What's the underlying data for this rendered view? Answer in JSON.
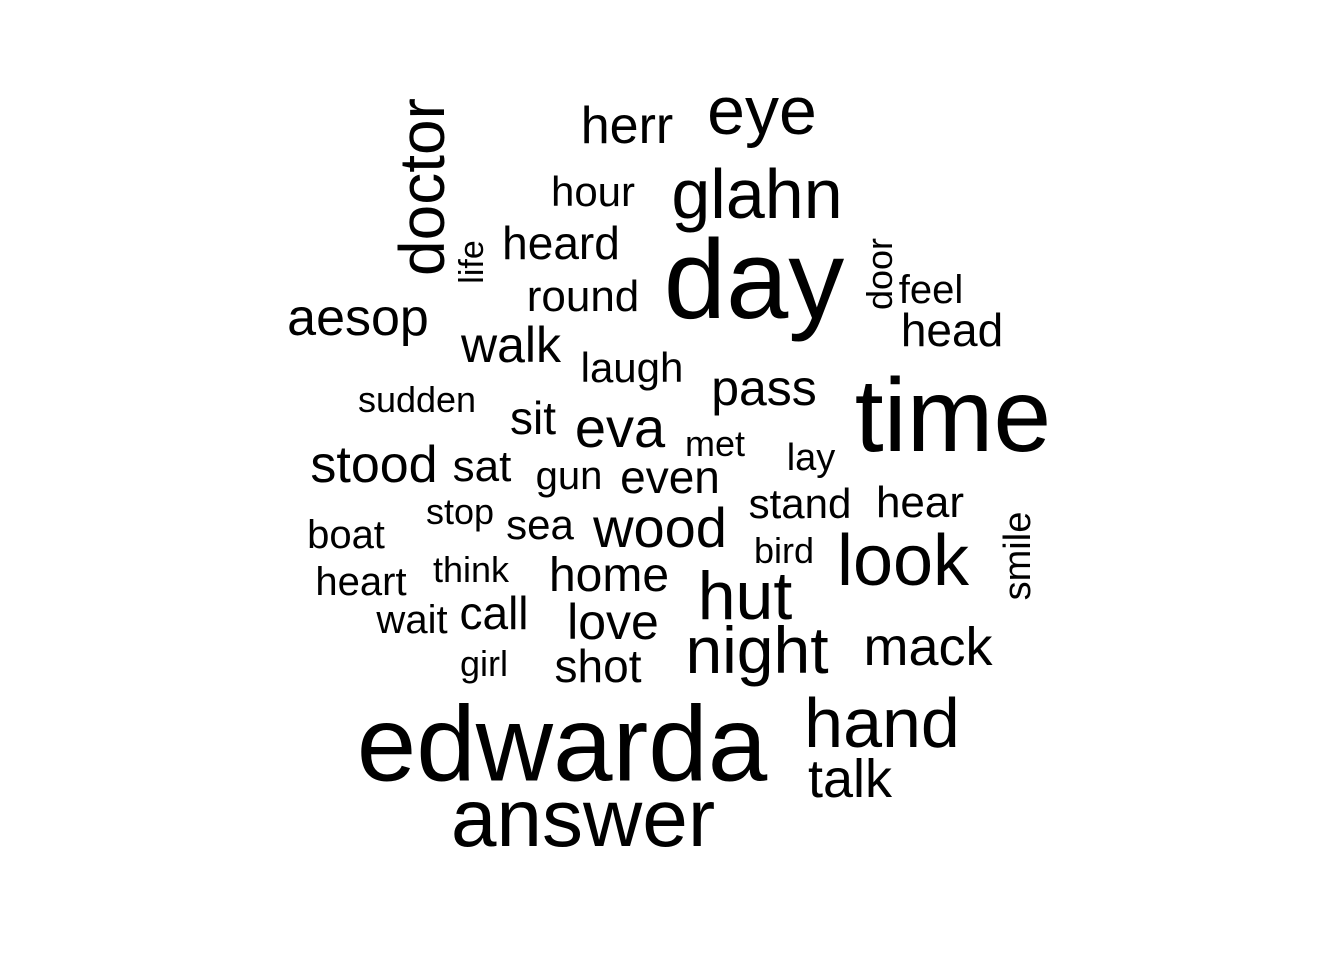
{
  "text_color": "#000000",
  "background": "#ffffff",
  "words": [
    {
      "text": "edwarda"
    },
    {
      "text": "day"
    },
    {
      "text": "time"
    },
    {
      "text": "answer"
    },
    {
      "text": "glahn"
    },
    {
      "text": "eye"
    },
    {
      "text": "doctor"
    },
    {
      "text": "look"
    },
    {
      "text": "night"
    },
    {
      "text": "hand"
    },
    {
      "text": "hut"
    },
    {
      "text": "herr"
    },
    {
      "text": "aesop"
    },
    {
      "text": "walk"
    },
    {
      "text": "eva"
    },
    {
      "text": "wood"
    },
    {
      "text": "talk"
    },
    {
      "text": "mack"
    },
    {
      "text": "stood"
    },
    {
      "text": "pass"
    },
    {
      "text": "heard"
    },
    {
      "text": "head"
    },
    {
      "text": "round"
    },
    {
      "text": "hour"
    },
    {
      "text": "home"
    },
    {
      "text": "love"
    },
    {
      "text": "shot"
    },
    {
      "text": "even"
    },
    {
      "text": "laugh"
    },
    {
      "text": "hear"
    },
    {
      "text": "stand"
    },
    {
      "text": "call"
    },
    {
      "text": "sit"
    },
    {
      "text": "sat"
    },
    {
      "text": "sea"
    },
    {
      "text": "feel"
    },
    {
      "text": "boat"
    },
    {
      "text": "heart"
    },
    {
      "text": "gun"
    },
    {
      "text": "door"
    },
    {
      "text": "smile"
    },
    {
      "text": "sudden"
    },
    {
      "text": "met"
    },
    {
      "text": "wait"
    },
    {
      "text": "lay"
    },
    {
      "text": "stop"
    },
    {
      "text": "think"
    },
    {
      "text": "bird"
    },
    {
      "text": "girl"
    },
    {
      "text": "life"
    }
  ]
}
